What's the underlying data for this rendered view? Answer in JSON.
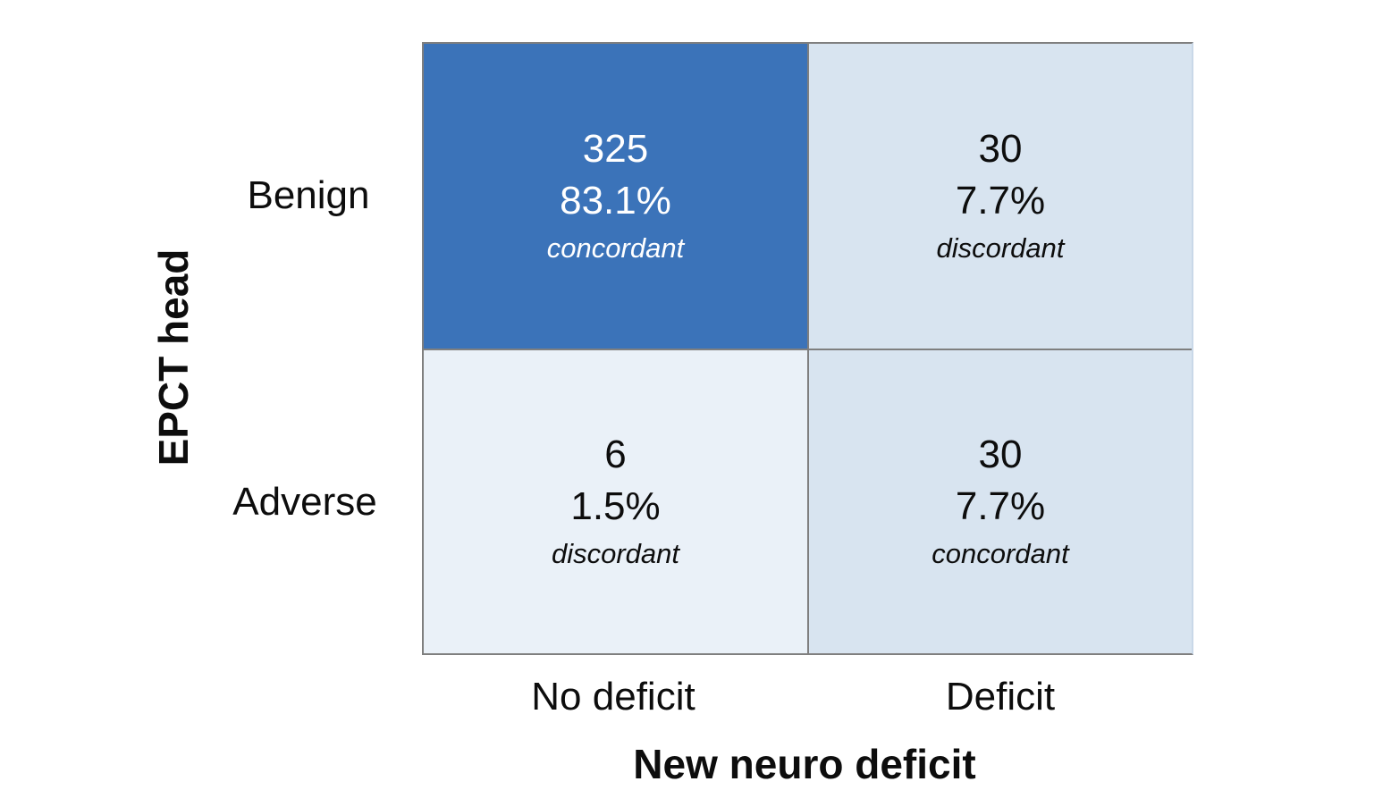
{
  "chart_data": {
    "type": "heatmap",
    "title": "",
    "x_axis": {
      "label": "New neuro deficit",
      "categories": [
        "No deficit",
        "Deficit"
      ]
    },
    "y_axis": {
      "label": "EPCT head",
      "categories": [
        "Benign",
        "Adverse"
      ]
    },
    "values": [
      [
        325,
        30
      ],
      [
        6,
        30
      ]
    ],
    "percents": [
      [
        83.1,
        7.7
      ],
      [
        1.5,
        7.7
      ]
    ],
    "cells": [
      {
        "row": "Benign",
        "col": "No deficit",
        "count": "325",
        "percent": "83.1%",
        "agreement": "concordant",
        "bg": "#3B73B9",
        "text": "#FFFFFF"
      },
      {
        "row": "Benign",
        "col": "Deficit",
        "count": "30",
        "percent": "7.7%",
        "agreement": "discordant",
        "bg": "#D8E4F0",
        "text": "#0D0D0D"
      },
      {
        "row": "Adverse",
        "col": "No deficit",
        "count": "6",
        "percent": "1.5%",
        "agreement": "discordant",
        "bg": "#EAF1F8",
        "text": "#0D0D0D"
      },
      {
        "row": "Adverse",
        "col": "Deficit",
        "count": "30",
        "percent": "7.7%",
        "agreement": "concordant",
        "bg": "#D8E4F0",
        "text": "#0D0D0D"
      }
    ],
    "colors": {
      "concordant_high": "#3B73B9",
      "cell_light": "#D8E4F0",
      "cell_lighter": "#EAF1F8",
      "grid": "#7F7F7F"
    },
    "legend": "none",
    "grid": true
  }
}
